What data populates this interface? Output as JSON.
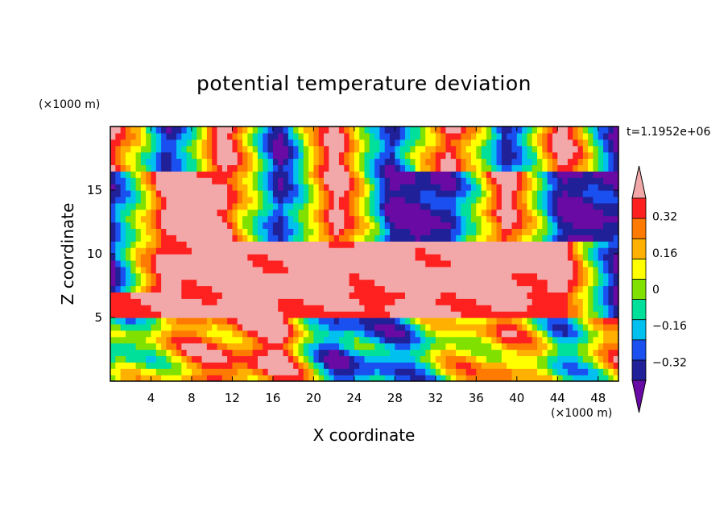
{
  "chart_data": {
    "type": "heatmap",
    "title": "potential temperature deviation",
    "xlabel": "X coordinate",
    "ylabel": "Z coordinate",
    "x_unit": "(×1000 m)",
    "y_unit": "(×1000 m)",
    "time_label": "t=1.1952e+06",
    "xlim": [
      0,
      50
    ],
    "ylim": [
      0,
      20
    ],
    "x_ticks": [
      "4",
      "8",
      "12",
      "16",
      "20",
      "24",
      "28",
      "32",
      "36",
      "40",
      "44",
      "48"
    ],
    "y_ticks": [
      "5",
      "10",
      "15"
    ],
    "colorbar": {
      "levels": [
        -0.4,
        -0.32,
        -0.24,
        -0.16,
        -0.08,
        0,
        0.08,
        0.16,
        0.24,
        0.32,
        0.4
      ],
      "tick_labels": [
        "0.32",
        "0.16",
        "0",
        "-0.16",
        "-0.32"
      ],
      "colors": [
        "#6a0aa5",
        "#202098",
        "#1a4ff0",
        "#00c0f0",
        "#00e09a",
        "#80e000",
        "#ffff00",
        "#ffb000",
        "#ff7a00",
        "#ff2020",
        "#f2a8a8"
      ]
    },
    "series": [
      {
        "band": "top, z 16.5–20",
        "pattern": "alternating",
        "values": [
          0.4,
          -0.4,
          0.4,
          -0.4,
          0.4,
          -0.4,
          0.4,
          -0.4,
          0.4,
          -0.4
        ]
      },
      {
        "band": "z 11–16.5",
        "pattern": "alternating",
        "values": [
          -0.4,
          0.4,
          0.4,
          -0.4,
          0.4,
          -0.4,
          -0.4,
          0.4,
          -0.4,
          -0.4
        ]
      },
      {
        "band": "z 7–11",
        "pattern": "mixed",
        "values": [
          -0.4,
          0.4,
          0.4,
          0.4,
          0.4,
          0.4,
          0.4,
          0.4,
          0.4,
          -0.4
        ]
      },
      {
        "band": "z 5–7",
        "pattern": "layer",
        "values": [
          0.3,
          0.32,
          0.35,
          0.35,
          0.3,
          0.32,
          0.35,
          0.32,
          0.3,
          -0.4
        ]
      },
      {
        "band": "z 0–5",
        "pattern": "turbulent",
        "values": [
          -0.16,
          0.1,
          0.25,
          0.3,
          -0.3,
          -0.24,
          0.0,
          0.2,
          -0.16,
          0.15
        ]
      }
    ]
  }
}
